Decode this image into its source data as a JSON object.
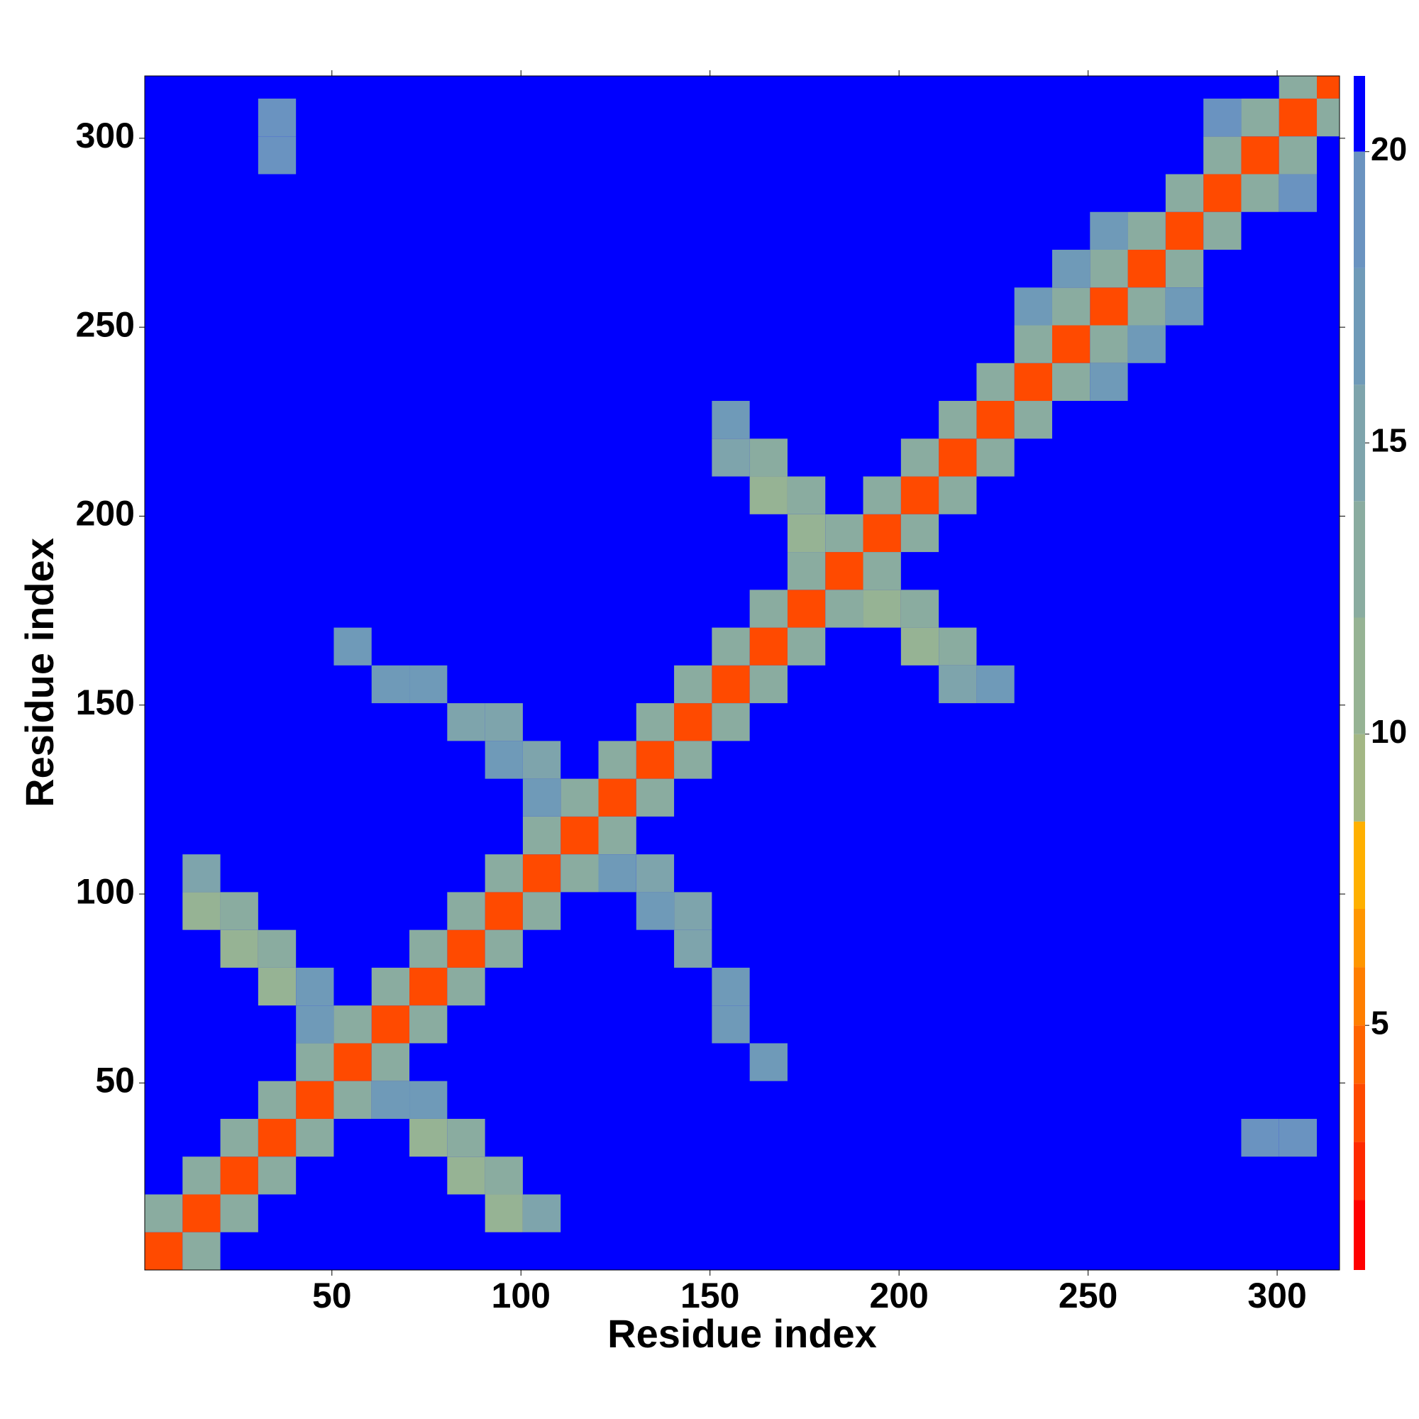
{
  "chart_data": {
    "type": "heatmap",
    "xlabel": "Residue index",
    "ylabel": "Residue index",
    "xlim": [
      0.5,
      316.5
    ],
    "ylim": [
      0.5,
      316.5
    ],
    "xticks": [
      50,
      100,
      150,
      200,
      250,
      300
    ],
    "yticks": [
      50,
      100,
      150,
      200,
      250,
      300
    ],
    "cell_size": 10,
    "background_value": 21,
    "cells": [
      [
        5.5,
        5.5,
        3
      ],
      [
        15.5,
        15.5,
        3
      ],
      [
        25.5,
        25.5,
        3
      ],
      [
        35.5,
        35.5,
        3
      ],
      [
        45.5,
        45.5,
        3
      ],
      [
        55.5,
        55.5,
        3
      ],
      [
        65.5,
        65.5,
        3
      ],
      [
        75.5,
        75.5,
        3
      ],
      [
        85.5,
        85.5,
        3
      ],
      [
        95.5,
        95.5,
        3
      ],
      [
        105.5,
        105.5,
        3
      ],
      [
        115.5,
        115.5,
        3
      ],
      [
        125.5,
        125.5,
        3
      ],
      [
        135.5,
        135.5,
        3
      ],
      [
        145.5,
        145.5,
        3
      ],
      [
        155.5,
        155.5,
        3
      ],
      [
        165.5,
        165.5,
        3
      ],
      [
        175.5,
        175.5,
        3
      ],
      [
        185.5,
        185.5,
        3
      ],
      [
        195.5,
        195.5,
        3
      ],
      [
        205.5,
        205.5,
        3
      ],
      [
        215.5,
        215.5,
        3
      ],
      [
        225.5,
        225.5,
        3
      ],
      [
        235.5,
        235.5,
        3
      ],
      [
        245.5,
        245.5,
        3
      ],
      [
        255.5,
        255.5,
        3
      ],
      [
        265.5,
        265.5,
        3
      ],
      [
        275.5,
        275.5,
        3
      ],
      [
        285.5,
        285.5,
        3
      ],
      [
        295.5,
        295.5,
        3
      ],
      [
        305.5,
        305.5,
        3
      ],
      [
        315.5,
        315.5,
        3
      ],
      [
        5.5,
        15.5,
        13
      ],
      [
        15.5,
        5.5,
        13
      ],
      [
        15.5,
        25.5,
        13
      ],
      [
        25.5,
        15.5,
        13
      ],
      [
        25.5,
        35.5,
        13
      ],
      [
        35.5,
        25.5,
        13
      ],
      [
        35.5,
        45.5,
        13
      ],
      [
        45.5,
        35.5,
        13
      ],
      [
        45.5,
        55.5,
        13
      ],
      [
        55.5,
        45.5,
        13
      ],
      [
        55.5,
        65.5,
        13
      ],
      [
        65.5,
        55.5,
        13
      ],
      [
        65.5,
        75.5,
        13
      ],
      [
        75.5,
        65.5,
        13
      ],
      [
        75.5,
        85.5,
        13
      ],
      [
        85.5,
        75.5,
        13
      ],
      [
        85.5,
        95.5,
        13
      ],
      [
        95.5,
        85.5,
        13
      ],
      [
        95.5,
        105.5,
        13
      ],
      [
        105.5,
        95.5,
        13
      ],
      [
        105.5,
        115.5,
        13
      ],
      [
        115.5,
        105.5,
        13
      ],
      [
        115.5,
        125.5,
        13
      ],
      [
        125.5,
        115.5,
        13
      ],
      [
        125.5,
        135.5,
        13
      ],
      [
        135.5,
        125.5,
        13
      ],
      [
        135.5,
        145.5,
        13
      ],
      [
        145.5,
        135.5,
        13
      ],
      [
        145.5,
        155.5,
        13
      ],
      [
        155.5,
        145.5,
        13
      ],
      [
        155.5,
        165.5,
        13
      ],
      [
        165.5,
        155.5,
        13
      ],
      [
        165.5,
        175.5,
        13
      ],
      [
        175.5,
        165.5,
        13
      ],
      [
        175.5,
        185.5,
        13
      ],
      [
        185.5,
        175.5,
        13
      ],
      [
        185.5,
        195.5,
        13
      ],
      [
        195.5,
        185.5,
        13
      ],
      [
        195.5,
        205.5,
        13
      ],
      [
        205.5,
        195.5,
        13
      ],
      [
        205.5,
        215.5,
        13
      ],
      [
        215.5,
        205.5,
        13
      ],
      [
        215.5,
        225.5,
        13
      ],
      [
        225.5,
        215.5,
        13
      ],
      [
        225.5,
        235.5,
        13
      ],
      [
        235.5,
        225.5,
        13
      ],
      [
        235.5,
        245.5,
        13
      ],
      [
        245.5,
        235.5,
        13
      ],
      [
        245.5,
        255.5,
        13
      ],
      [
        255.5,
        245.5,
        13
      ],
      [
        255.5,
        265.5,
        13
      ],
      [
        265.5,
        255.5,
        13
      ],
      [
        265.5,
        275.5,
        13
      ],
      [
        275.5,
        265.5,
        13
      ],
      [
        275.5,
        285.5,
        13
      ],
      [
        285.5,
        275.5,
        13
      ],
      [
        285.5,
        295.5,
        13
      ],
      [
        295.5,
        285.5,
        13
      ],
      [
        295.5,
        305.5,
        13
      ],
      [
        305.5,
        295.5,
        13
      ],
      [
        305.5,
        315.5,
        13
      ],
      [
        315.5,
        305.5,
        13
      ],
      [
        15.5,
        95.5,
        11
      ],
      [
        15.5,
        105.5,
        15
      ],
      [
        25.5,
        85.5,
        10
      ],
      [
        25.5,
        95.5,
        12
      ],
      [
        35.5,
        75.5,
        11
      ],
      [
        35.5,
        85.5,
        13
      ],
      [
        45.5,
        75.5,
        16
      ],
      [
        45.5,
        65.5,
        16
      ],
      [
        95.5,
        15.5,
        11
      ],
      [
        105.5,
        15.5,
        15
      ],
      [
        85.5,
        25.5,
        10
      ],
      [
        95.5,
        25.5,
        12
      ],
      [
        75.5,
        35.5,
        11
      ],
      [
        85.5,
        35.5,
        13
      ],
      [
        75.5,
        45.5,
        16
      ],
      [
        65.5,
        45.5,
        16
      ],
      [
        55.5,
        165.5,
        17
      ],
      [
        65.5,
        155.5,
        17
      ],
      [
        75.5,
        155.5,
        16
      ],
      [
        85.5,
        145.5,
        15
      ],
      [
        95.5,
        145.5,
        15
      ],
      [
        95.5,
        135.5,
        16
      ],
      [
        105.5,
        135.5,
        15
      ],
      [
        105.5,
        125.5,
        16
      ],
      [
        165.5,
        55.5,
        17
      ],
      [
        155.5,
        65.5,
        17
      ],
      [
        155.5,
        75.5,
        16
      ],
      [
        145.5,
        85.5,
        15
      ],
      [
        145.5,
        95.5,
        15
      ],
      [
        135.5,
        95.5,
        16
      ],
      [
        135.5,
        105.5,
        15
      ],
      [
        125.5,
        105.5,
        16
      ],
      [
        155.5,
        225.5,
        16
      ],
      [
        155.5,
        215.5,
        14
      ],
      [
        165.5,
        215.5,
        12
      ],
      [
        165.5,
        205.5,
        11
      ],
      [
        175.5,
        205.5,
        12
      ],
      [
        175.5,
        195.5,
        11
      ],
      [
        225.5,
        155.5,
        16
      ],
      [
        215.5,
        155.5,
        14
      ],
      [
        215.5,
        165.5,
        12
      ],
      [
        205.5,
        165.5,
        11
      ],
      [
        205.5,
        175.5,
        12
      ],
      [
        195.5,
        175.5,
        11
      ],
      [
        245.5,
        265.5,
        17
      ],
      [
        235.5,
        255.5,
        17
      ],
      [
        255.5,
        275.5,
        17
      ],
      [
        265.5,
        245.5,
        17
      ],
      [
        255.5,
        235.5,
        17
      ],
      [
        275.5,
        255.5,
        17
      ],
      [
        285.5,
        305.5,
        19
      ],
      [
        305.5,
        285.5,
        19
      ],
      [
        35.5,
        295.5,
        18
      ],
      [
        35.5,
        305.5,
        19
      ],
      [
        295.5,
        35.5,
        18
      ],
      [
        305.5,
        35.5,
        19
      ]
    ],
    "colorbar": {
      "boundaries": [
        0.8,
        2,
        3,
        4,
        5,
        6,
        7,
        8.5,
        10,
        12,
        14,
        16,
        18,
        20,
        21.3
      ],
      "colors": [
        "#ff0000",
        "#ff2a00",
        "#ff4a00",
        "#ff6400",
        "#ff7e00",
        "#ff9600",
        "#ffb000",
        "#a3b785",
        "#96b394",
        "#8aaca0",
        "#7ea4ac",
        "#6f9ab8",
        "#6a93c0",
        "#0000ff"
      ],
      "ticks": [
        5,
        10,
        15,
        20
      ]
    }
  }
}
